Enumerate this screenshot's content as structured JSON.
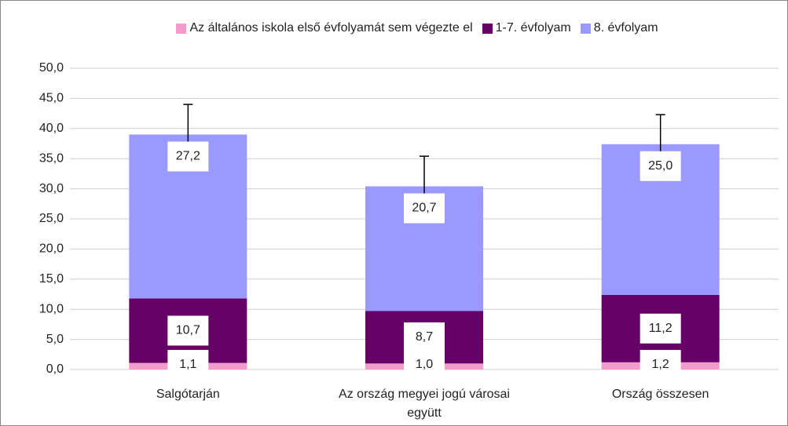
{
  "chart_data": {
    "type": "bar",
    "stacked": true,
    "categories": [
      "Salgótarján",
      "Az ország megyei jogú városai együtt",
      "Ország összesen"
    ],
    "series": [
      {
        "name": "Az általános iskola első évfolyamát sem végezte el",
        "color": "#f39bcb",
        "values": [
          1.1,
          1.0,
          1.2
        ],
        "value_labels": [
          "1,1",
          "1,0",
          "1,2"
        ]
      },
      {
        "name": "1-7. évfolyam",
        "color": "#660066",
        "values": [
          10.7,
          8.7,
          11.2
        ],
        "value_labels": [
          "10,7",
          "8,7",
          "11,2"
        ]
      },
      {
        "name": "8. évfolyam",
        "color": "#9999ff",
        "values": [
          27.2,
          20.7,
          25.0
        ],
        "value_labels": [
          "27,2",
          "20,7",
          "25,0"
        ],
        "errors": [
          5.0,
          5.0,
          4.9
        ]
      }
    ],
    "ylim": [
      0,
      50
    ],
    "yticks": [
      {
        "value": 0,
        "label": "0,0"
      },
      {
        "value": 5,
        "label": "5,0"
      },
      {
        "value": 10,
        "label": "10,0"
      },
      {
        "value": 15,
        "label": "15,0"
      },
      {
        "value": 20,
        "label": "20,0"
      },
      {
        "value": 25,
        "label": "25,0"
      },
      {
        "value": 30,
        "label": "30,0"
      },
      {
        "value": 35,
        "label": "35,0"
      },
      {
        "value": 40,
        "label": "40,0"
      },
      {
        "value": 45,
        "label": "45,0"
      },
      {
        "value": 50,
        "label": "50,0"
      }
    ],
    "grid": true,
    "legend": "top"
  }
}
